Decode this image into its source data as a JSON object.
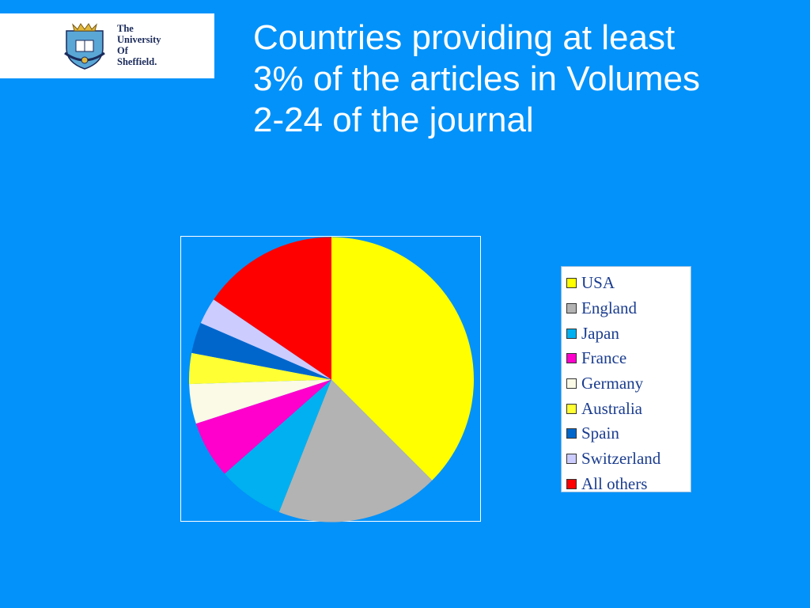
{
  "logo": {
    "line1": "The",
    "line2": "University",
    "line3": "Of",
    "line4": "Sheffield."
  },
  "title": {
    "line1": "Countries providing at least",
    "line2": "3% of the articles in Volumes",
    "line3": "2-24 of the journal"
  },
  "chart_data": {
    "type": "pie",
    "title": "Countries providing at least 3% of the articles in Volumes 2-24 of the journal",
    "start_angle": "12 o'clock",
    "direction": "clockwise",
    "legend_position": "right",
    "slices": [
      {
        "label": "USA",
        "value": 37.5,
        "color": "#ffff00"
      },
      {
        "label": "England",
        "value": 18.5,
        "color": "#b3b3b3"
      },
      {
        "label": "Japan",
        "value": 7.5,
        "color": "#00b0f0"
      },
      {
        "label": "France",
        "value": 6.5,
        "color": "#ff00cc"
      },
      {
        "label": "Germany",
        "value": 4.5,
        "color": "#fafae6"
      },
      {
        "label": "Australia",
        "value": 3.5,
        "color": "#ffff33"
      },
      {
        "label": "Spain",
        "value": 3.5,
        "color": "#0066cc"
      },
      {
        "label": "Switzerland",
        "value": 3.0,
        "color": "#ccccff"
      },
      {
        "label": "All others",
        "value": 15.5,
        "color": "#ff0000"
      }
    ]
  }
}
